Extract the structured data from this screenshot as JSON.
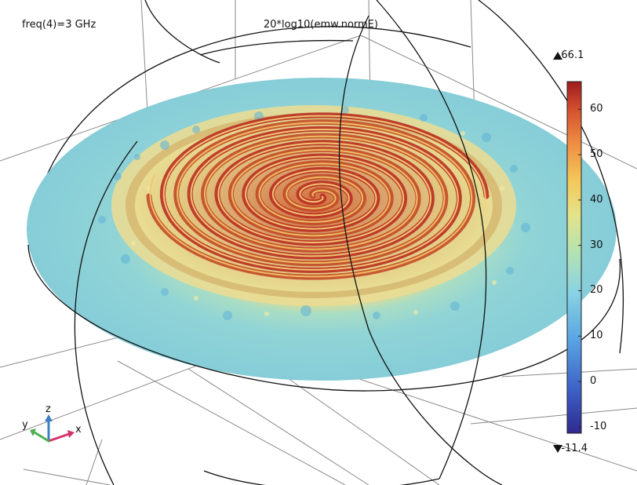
{
  "chart_data": {
    "type": "heatmap",
    "subtype": "3D surface plot of electric field norm over a disc (spiral antenna)",
    "parameter_label": "freq(4)=3 GHz",
    "expression_label": "20*log10(emw.normE)",
    "colorbar": {
      "max_label": "66.1",
      "min_label": "-11.4",
      "max": 66.1,
      "min": -11.4,
      "ticks": [
        60,
        50,
        40,
        30,
        20,
        10,
        0,
        -10
      ],
      "tick_labels": [
        "60",
        "50",
        "40",
        "30",
        "20",
        "10",
        "0",
        "-10"
      ],
      "colormap": [
        "#3a2a9a",
        "#3f6fd0",
        "#63b8e8",
        "#8fd8d6",
        "#c9e79a",
        "#f2de5a",
        "#f3a043",
        "#d9542f",
        "#a51c1c"
      ]
    },
    "surface": {
      "background_level_color": "#8fd3d9",
      "ring_level_color": "#e8d98a",
      "spiral_peak_color": "#c73a28",
      "spiral_turns": 6
    },
    "axes_triad": {
      "x": "x",
      "y": "y",
      "z": "z",
      "x_color": "#d6336c",
      "y_color": "#4caf50",
      "z_color": "#3d7fc4"
    }
  }
}
